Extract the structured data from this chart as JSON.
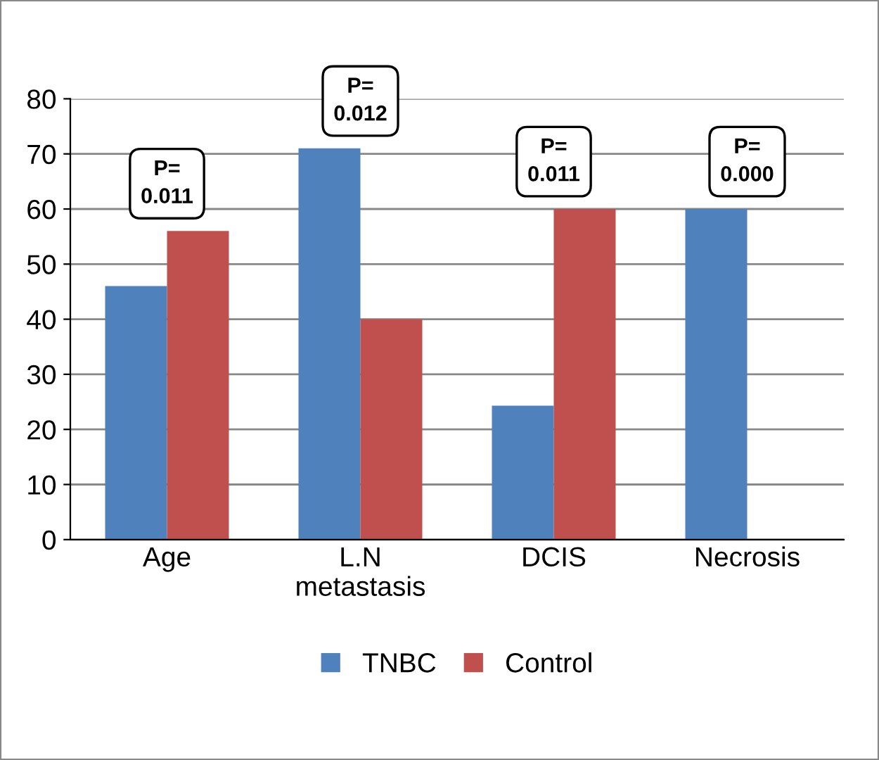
{
  "chart_data": {
    "type": "bar",
    "categories": [
      "Age",
      "L.N\nmetastasis",
      "DCIS",
      "Necrosis"
    ],
    "series": [
      {
        "name": "TNBC",
        "color": "#4f81bd",
        "values": [
          46,
          71,
          24.3,
          60
        ]
      },
      {
        "name": "Control",
        "color": "#c0504d",
        "values": [
          56,
          40,
          60,
          0
        ]
      }
    ],
    "ylim": [
      0,
      80
    ],
    "yticks": [
      0,
      10,
      20,
      30,
      40,
      50,
      60,
      70,
      80
    ],
    "grid": "y",
    "legend": "bottom",
    "annotations": [
      "P=\n0.011",
      "P=\n0.012",
      "P=\n0.011",
      "P=\n0.000"
    ]
  }
}
